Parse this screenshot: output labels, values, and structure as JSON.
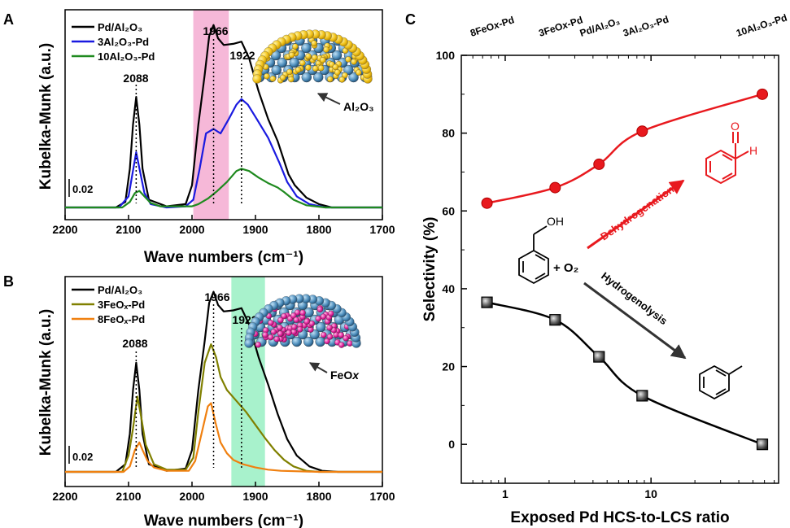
{
  "panels": {
    "A": {
      "letter": "A"
    },
    "B": {
      "letter": "B"
    },
    "C": {
      "letter": "C"
    }
  },
  "chart_data": [
    {
      "id": "A",
      "type": "line",
      "xlabel": "Wave numbers (cm⁻¹)",
      "ylabel": "Kubelka-Munk (a.u.)",
      "xlim": [
        2200,
        1700
      ],
      "x_ticks": [
        "2200",
        "2100",
        "2000",
        "1900",
        "1800",
        "1700"
      ],
      "scale_bar_label": "0.02",
      "peak_labels": [
        "2088",
        "1966",
        "1922"
      ],
      "highlight_band": [
        1998,
        1942
      ],
      "highlight_color": "#f6b8d8",
      "inset_label": "Al₂O₃",
      "series": [
        {
          "name": "Pd/Al₂O₃",
          "color": "#000000",
          "points": [
            [
              2200,
              0.005
            ],
            [
              2120,
              0.005
            ],
            [
              2105,
              0.01
            ],
            [
              2098,
              0.04
            ],
            [
              2093,
              0.08
            ],
            [
              2088,
              0.105
            ],
            [
              2083,
              0.08
            ],
            [
              2078,
              0.04
            ],
            [
              2068,
              0.012
            ],
            [
              2040,
              0.006
            ],
            [
              2010,
              0.008
            ],
            [
              2000,
              0.025
            ],
            [
              1990,
              0.08
            ],
            [
              1980,
              0.125
            ],
            [
              1973,
              0.16
            ],
            [
              1966,
              0.17
            ],
            [
              1959,
              0.158
            ],
            [
              1950,
              0.152
            ],
            [
              1935,
              0.153
            ],
            [
              1922,
              0.155
            ],
            [
              1910,
              0.14
            ],
            [
              1895,
              0.11
            ],
            [
              1880,
              0.085
            ],
            [
              1865,
              0.065
            ],
            [
              1848,
              0.035
            ],
            [
              1838,
              0.025
            ],
            [
              1820,
              0.014
            ],
            [
              1800,
              0.008
            ],
            [
              1780,
              0.005
            ],
            [
              1700,
              0.005
            ]
          ]
        },
        {
          "name": "3Al₂O₃-Pd",
          "color": "#1a1ae0",
          "points": [
            [
              2200,
              0.005
            ],
            [
              2115,
              0.005
            ],
            [
              2100,
              0.015
            ],
            [
              2094,
              0.035
            ],
            [
              2088,
              0.055
            ],
            [
              2082,
              0.038
            ],
            [
              2075,
              0.018
            ],
            [
              2065,
              0.008
            ],
            [
              2040,
              0.005
            ],
            [
              2010,
              0.006
            ],
            [
              1998,
              0.012
            ],
            [
              1988,
              0.04
            ],
            [
              1978,
              0.072
            ],
            [
              1966,
              0.076
            ],
            [
              1955,
              0.072
            ],
            [
              1942,
              0.085
            ],
            [
              1930,
              0.098
            ],
            [
              1922,
              0.103
            ],
            [
              1912,
              0.098
            ],
            [
              1898,
              0.085
            ],
            [
              1880,
              0.068
            ],
            [
              1862,
              0.045
            ],
            [
              1850,
              0.028
            ],
            [
              1835,
              0.015
            ],
            [
              1815,
              0.008
            ],
            [
              1790,
              0.005
            ],
            [
              1700,
              0.005
            ]
          ]
        },
        {
          "name": "10Al₂O₃-Pd",
          "color": "#1f8a1f",
          "points": [
            [
              2200,
              0.005
            ],
            [
              2110,
              0.005
            ],
            [
              2098,
              0.01
            ],
            [
              2090,
              0.018
            ],
            [
              2083,
              0.02
            ],
            [
              2075,
              0.015
            ],
            [
              2065,
              0.009
            ],
            [
              2050,
              0.006
            ],
            [
              2000,
              0.006
            ],
            [
              1990,
              0.008
            ],
            [
              1975,
              0.013
            ],
            [
              1960,
              0.02
            ],
            [
              1945,
              0.028
            ],
            [
              1930,
              0.038
            ],
            [
              1922,
              0.04
            ],
            [
              1910,
              0.038
            ],
            [
              1895,
              0.032
            ],
            [
              1880,
              0.027
            ],
            [
              1865,
              0.023
            ],
            [
              1855,
              0.019
            ],
            [
              1840,
              0.012
            ],
            [
              1820,
              0.007
            ],
            [
              1790,
              0.005
            ],
            [
              1700,
              0.005
            ]
          ]
        }
      ]
    },
    {
      "id": "B",
      "type": "line",
      "xlabel": "Wave numbers (cm⁻¹)",
      "ylabel": "Kubelka-Munk (a.u.)",
      "xlim": [
        2200,
        1700
      ],
      "x_ticks": [
        "2200",
        "2100",
        "2000",
        "1900",
        "1800",
        "1700"
      ],
      "scale_bar_label": "0.02",
      "peak_labels": [
        "2088",
        "1966",
        "1922"
      ],
      "highlight_band": [
        1938,
        1885
      ],
      "highlight_color": "#a8f2cc",
      "inset_label": "FeO",
      "inset_label_sub": "x",
      "series": [
        {
          "name": "Pd/Al₂O₃",
          "color": "#000000",
          "points": [
            [
              2200,
              0.005
            ],
            [
              2120,
              0.005
            ],
            [
              2105,
              0.012
            ],
            [
              2098,
              0.04
            ],
            [
              2093,
              0.08
            ],
            [
              2088,
              0.105
            ],
            [
              2083,
              0.08
            ],
            [
              2078,
              0.04
            ],
            [
              2068,
              0.012
            ],
            [
              2040,
              0.006
            ],
            [
              2010,
              0.008
            ],
            [
              2000,
              0.025
            ],
            [
              1990,
              0.08
            ],
            [
              1980,
              0.125
            ],
            [
              1973,
              0.16
            ],
            [
              1966,
              0.17
            ],
            [
              1959,
              0.158
            ],
            [
              1950,
              0.152
            ],
            [
              1935,
              0.153
            ],
            [
              1922,
              0.155
            ],
            [
              1910,
              0.14
            ],
            [
              1895,
              0.11
            ],
            [
              1880,
              0.085
            ],
            [
              1865,
              0.058
            ],
            [
              1850,
              0.035
            ],
            [
              1835,
              0.02
            ],
            [
              1815,
              0.01
            ],
            [
              1795,
              0.006
            ],
            [
              1770,
              0.005
            ],
            [
              1700,
              0.005
            ]
          ]
        },
        {
          "name": "3FeOₓ-Pd",
          "color": "#808000",
          "points": [
            [
              2200,
              0.005
            ],
            [
              2110,
              0.005
            ],
            [
              2100,
              0.02
            ],
            [
              2093,
              0.045
            ],
            [
              2086,
              0.074
            ],
            [
              2080,
              0.055
            ],
            [
              2073,
              0.03
            ],
            [
              2060,
              0.012
            ],
            [
              2040,
              0.007
            ],
            [
              2010,
              0.007
            ],
            [
              1998,
              0.018
            ],
            [
              1990,
              0.06
            ],
            [
              1980,
              0.105
            ],
            [
              1970,
              0.122
            ],
            [
              1962,
              0.11
            ],
            [
              1955,
              0.092
            ],
            [
              1945,
              0.08
            ],
            [
              1930,
              0.07
            ],
            [
              1915,
              0.06
            ],
            [
              1900,
              0.048
            ],
            [
              1885,
              0.036
            ],
            [
              1870,
              0.025
            ],
            [
              1855,
              0.016
            ],
            [
              1840,
              0.01
            ],
            [
              1820,
              0.006
            ],
            [
              1800,
              0.005
            ],
            [
              1700,
              0.005
            ]
          ]
        },
        {
          "name": "8FeOₓ-Pd",
          "color": "#f08010",
          "points": [
            [
              2200,
              0.005
            ],
            [
              2108,
              0.005
            ],
            [
              2098,
              0.01
            ],
            [
              2090,
              0.025
            ],
            [
              2083,
              0.032
            ],
            [
              2078,
              0.025
            ],
            [
              2070,
              0.015
            ],
            [
              2060,
              0.009
            ],
            [
              2040,
              0.006
            ],
            [
              2005,
              0.006
            ],
            [
              1995,
              0.015
            ],
            [
              1985,
              0.04
            ],
            [
              1975,
              0.065
            ],
            [
              1970,
              0.068
            ],
            [
              1963,
              0.05
            ],
            [
              1955,
              0.032
            ],
            [
              1945,
              0.022
            ],
            [
              1935,
              0.016
            ],
            [
              1920,
              0.012
            ],
            [
              1900,
              0.009
            ],
            [
              1880,
              0.007
            ],
            [
              1860,
              0.006
            ],
            [
              1800,
              0.005
            ],
            [
              1700,
              0.005
            ]
          ]
        }
      ]
    },
    {
      "id": "C",
      "type": "line",
      "xlabel": "Exposed Pd HCS-to-LCS ratio",
      "ylabel": "Selectivity (%)",
      "xscale": "log",
      "xlim": [
        0.5,
        75
      ],
      "ylim": [
        -10,
        100
      ],
      "y_ticks": [
        "0",
        "20",
        "40",
        "60",
        "80",
        "100"
      ],
      "x_ticks": [
        "1",
        "10"
      ],
      "top_labels": [
        {
          "text": "8FeO",
          "sub": "x",
          "tail": "-Pd",
          "x": 0.78
        },
        {
          "text": "3FeO",
          "sub": "x",
          "tail": "-Pd",
          "x": 2.3
        },
        {
          "text": "Pd/Al₂O₃",
          "sub": "",
          "tail": "",
          "x": 4.4
        },
        {
          "text": "3Al₂O₃-Pd",
          "sub": "",
          "tail": "",
          "x": 8.7
        },
        {
          "text": "10Al₂O₃-Pd",
          "sub": "",
          "tail": "",
          "x": 52
        }
      ],
      "series": [
        {
          "name": "Dehydrogenation",
          "color": "#e8191e",
          "marker": "circle",
          "x": [
            0.75,
            2.2,
            4.4,
            8.7,
            58
          ],
          "y": [
            62,
            66,
            72,
            80.5,
            90
          ]
        },
        {
          "name": "Hydrogenolysis",
          "color": "#000000",
          "marker": "square",
          "x": [
            0.75,
            2.2,
            4.4,
            8.7,
            58
          ],
          "y": [
            36.5,
            32,
            22.5,
            12.5,
            0
          ]
        }
      ],
      "annotations": {
        "dehydrogenation": "Dehydrogenation",
        "hydrogenolysis": "Hydrogenolysis",
        "reagent": "+ O₂",
        "oh": "OH",
        "aldehyde_o": "O",
        "aldehyde_h": "H"
      }
    }
  ]
}
